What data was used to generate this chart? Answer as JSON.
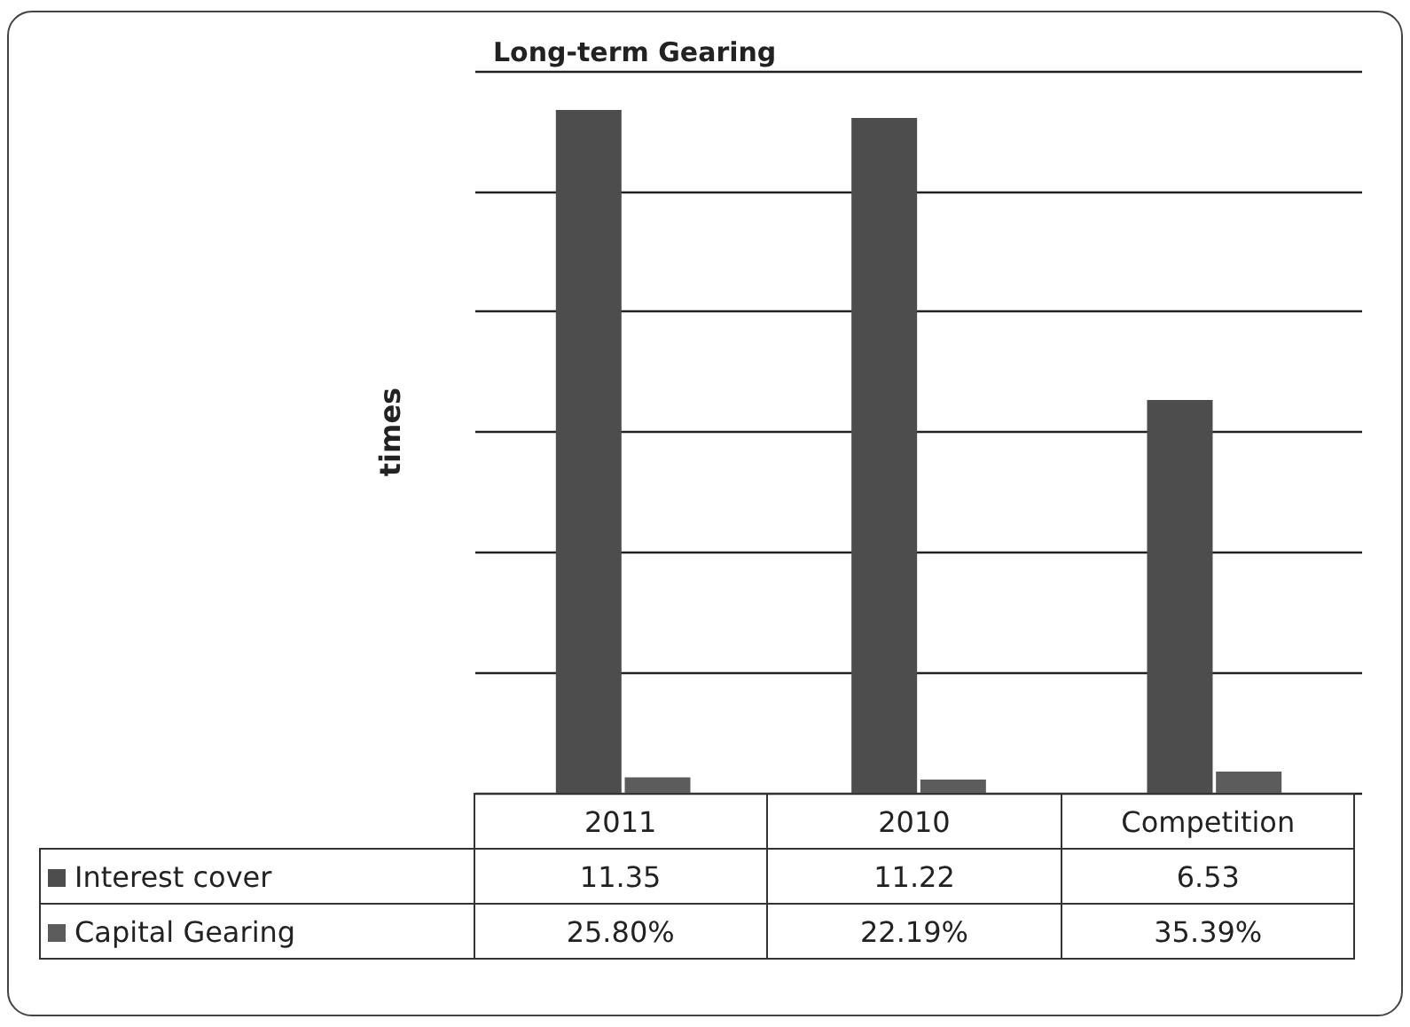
{
  "chart_data": {
    "type": "bar",
    "title": "Long-term Gearing",
    "ylabel": "times",
    "categories": [
      "2011",
      "2010",
      "Competition"
    ],
    "series": [
      {
        "name": "Interest cover",
        "color": "#4d4d4d",
        "values": [
          11.35,
          11.22,
          6.53
        ],
        "value_labels": [
          "11.35",
          "11.22",
          "6.53"
        ]
      },
      {
        "name": "Capital Gearing",
        "color": "#5c5c5c",
        "values": [
          0.258,
          0.2219,
          0.3539
        ],
        "value_labels": [
          "25.80%",
          "22.19%",
          "35.39%"
        ]
      }
    ],
    "ylim": [
      0,
      12
    ],
    "yticks": [
      {
        "value": 0,
        "label": null
      },
      {
        "value": 2,
        "label": null
      },
      {
        "value": 4,
        "label": null
      },
      {
        "value": 6,
        "label": null
      },
      {
        "value": 8,
        "label": null
      },
      {
        "value": 10,
        "label": null
      },
      {
        "value": 12,
        "label": null
      }
    ],
    "grid": "y",
    "tick_labels": "x",
    "legend": "bottom"
  }
}
